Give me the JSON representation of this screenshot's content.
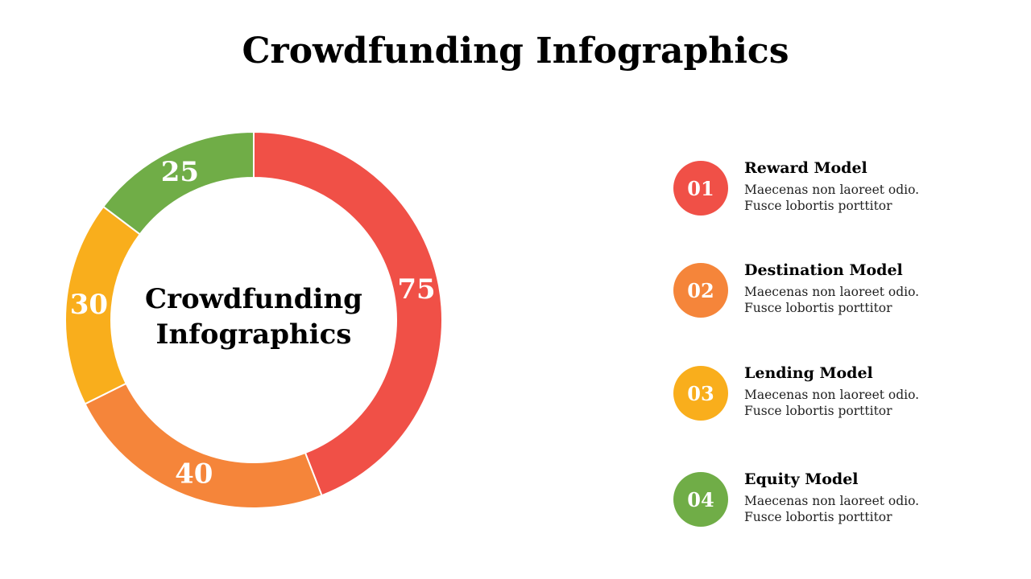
{
  "title": "Crowdfunding Infographics",
  "center_text": [
    "Crowdfunding",
    "Infographics"
  ],
  "chart_data": {
    "type": "pie",
    "donut": true,
    "values": [
      75,
      40,
      30,
      25
    ],
    "colors": [
      "#F05047",
      "#F5853A",
      "#F9AE1C",
      "#70AD47"
    ],
    "labels": [
      "75",
      "40",
      "30",
      "25"
    ]
  },
  "legend": {
    "items": [
      {
        "number": "01",
        "title": "Reward Model",
        "line1": "Maecenas non laoreet odio.",
        "line2": "Fusce lobortis porttitor",
        "color": "#F05047"
      },
      {
        "number": "02",
        "title": "Destination Model",
        "line1": "Maecenas non laoreet odio.",
        "line2": "Fusce lobortis porttitor",
        "color": "#F5853A"
      },
      {
        "number": "03",
        "title": "Lending Model",
        "line1": "Maecenas non laoreet odio.",
        "line2": "Fusce lobortis porttitor",
        "color": "#F9AE1C"
      },
      {
        "number": "04",
        "title": "Equity Model",
        "line1": "Maecenas non laoreet odio.",
        "line2": "Fusce lobortis porttitor",
        "color": "#70AD47"
      }
    ]
  }
}
